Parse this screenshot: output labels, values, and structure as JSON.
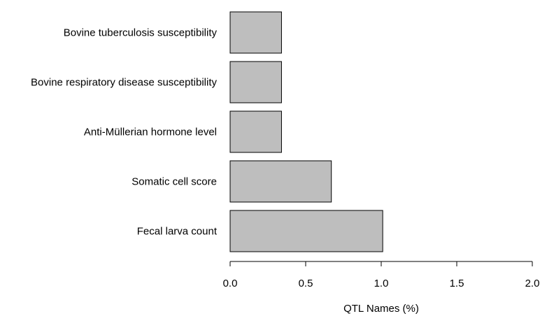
{
  "chart_data": {
    "type": "bar",
    "orientation": "horizontal",
    "categories": [
      "Bovine tuberculosis susceptibility",
      "Bovine respiratory disease susceptibility",
      "Anti-Müllerian hormone level",
      "Somatic cell score",
      "Fecal larva count"
    ],
    "values": [
      0.34,
      0.34,
      0.34,
      0.67,
      1.01
    ],
    "xlabel": "QTL Names (%)",
    "ylabel": "",
    "xlim": [
      0,
      2.0
    ],
    "xticks": [
      "0.0",
      "0.5",
      "1.0",
      "1.5",
      "2.0"
    ],
    "bar_color": "#bebebe",
    "grid": false
  }
}
